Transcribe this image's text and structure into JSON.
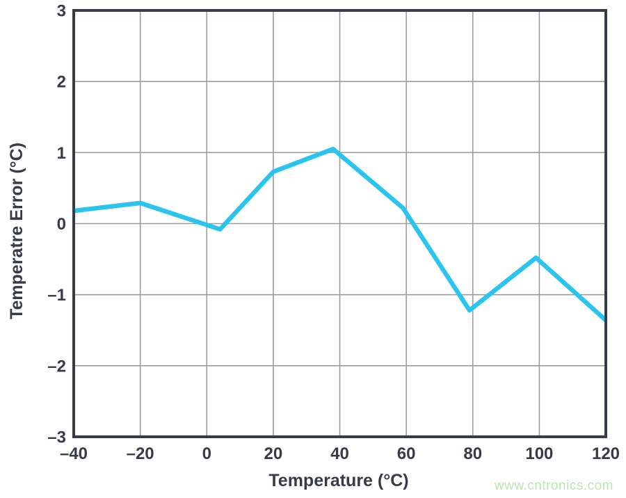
{
  "figure": {
    "background_color": "#ffffff"
  },
  "watermark": {
    "text": "www.cntronics.com",
    "color": "#bce5b1"
  },
  "chart_data": {
    "type": "line",
    "title": "",
    "xlabel": "Temperature (°C)",
    "ylabel": "Temperatre Error (°C)",
    "xlim": [
      -40,
      120
    ],
    "ylim": [
      -3,
      3
    ],
    "x_ticks": [
      -40,
      -20,
      0,
      20,
      40,
      60,
      80,
      100,
      120
    ],
    "y_ticks": [
      -3,
      -2,
      -1,
      0,
      1,
      2,
      3
    ],
    "grid": true,
    "legend": "none",
    "axis_color": "#353b49",
    "grid_color": "#9b9ba0",
    "series": [
      {
        "name": "temperature-error",
        "color": "#2bc4ef",
        "points": [
          {
            "x": -40,
            "y": 0.18
          },
          {
            "x": -20,
            "y": 0.29
          },
          {
            "x": 4,
            "y": -0.08
          },
          {
            "x": 20,
            "y": 0.73
          },
          {
            "x": 38,
            "y": 1.05
          },
          {
            "x": 59,
            "y": 0.22
          },
          {
            "x": 79,
            "y": -1.22
          },
          {
            "x": 99,
            "y": -0.48
          },
          {
            "x": 120,
            "y": -1.36
          }
        ]
      }
    ]
  }
}
